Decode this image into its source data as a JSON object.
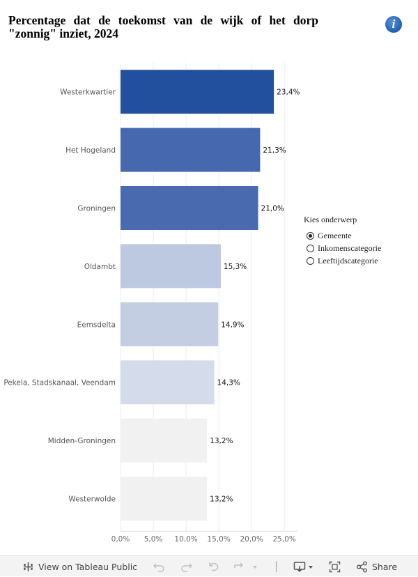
{
  "title": "Percentage dat de toekomst van de wijk of het dorp \"zonnig\" inziet, 2024",
  "info_icon_glyph": "i",
  "chart_data": {
    "type": "bar",
    "orientation": "horizontal",
    "categories": [
      "Westerkwartier",
      "Het Hogeland",
      "Groningen",
      "Oldambt",
      "Eemsdelta",
      "Pekela, Stadskanaal, Veendam",
      "Midden-Groningen",
      "Westerwolde"
    ],
    "values": [
      23.4,
      21.3,
      21.0,
      15.3,
      14.9,
      14.3,
      13.2,
      13.2
    ],
    "value_labels": [
      "23,4%",
      "21,3%",
      "21,0%",
      "15,3%",
      "14,9%",
      "14,3%",
      "13,2%",
      "13,2%"
    ],
    "colors": [
      "#23509e",
      "#4568ae",
      "#4a6aaf",
      "#bdc9e1",
      "#c3cee3",
      "#d4dbea",
      "#f1f1f1",
      "#f1f1f1"
    ],
    "xlim": [
      0,
      27
    ],
    "xticks": [
      0,
      5,
      10,
      15,
      20,
      25
    ],
    "xtick_labels": [
      "0,0%",
      "5,0%",
      "10,0%",
      "15,0%",
      "20,0%",
      "25,0%"
    ],
    "grid": true
  },
  "parameter": {
    "title": "Kies onderwerp",
    "options": [
      {
        "label": "Gemeente",
        "checked": true
      },
      {
        "label": "Inkomenscategorie",
        "checked": false
      },
      {
        "label": "Leeftijdscategorie",
        "checked": false
      }
    ]
  },
  "toolbar": {
    "view_label": "View on Tableau Public",
    "share_label": "Share",
    "view_icon": "tableau-logo-icon",
    "undo_icon": "undo-icon",
    "redo_icon": "redo-icon",
    "revert_icon": "revert-icon",
    "refresh_icon": "refresh-icon",
    "download_icon": "download-icon",
    "fullscreen_icon": "fullscreen-icon",
    "share_icon": "share-icon"
  }
}
